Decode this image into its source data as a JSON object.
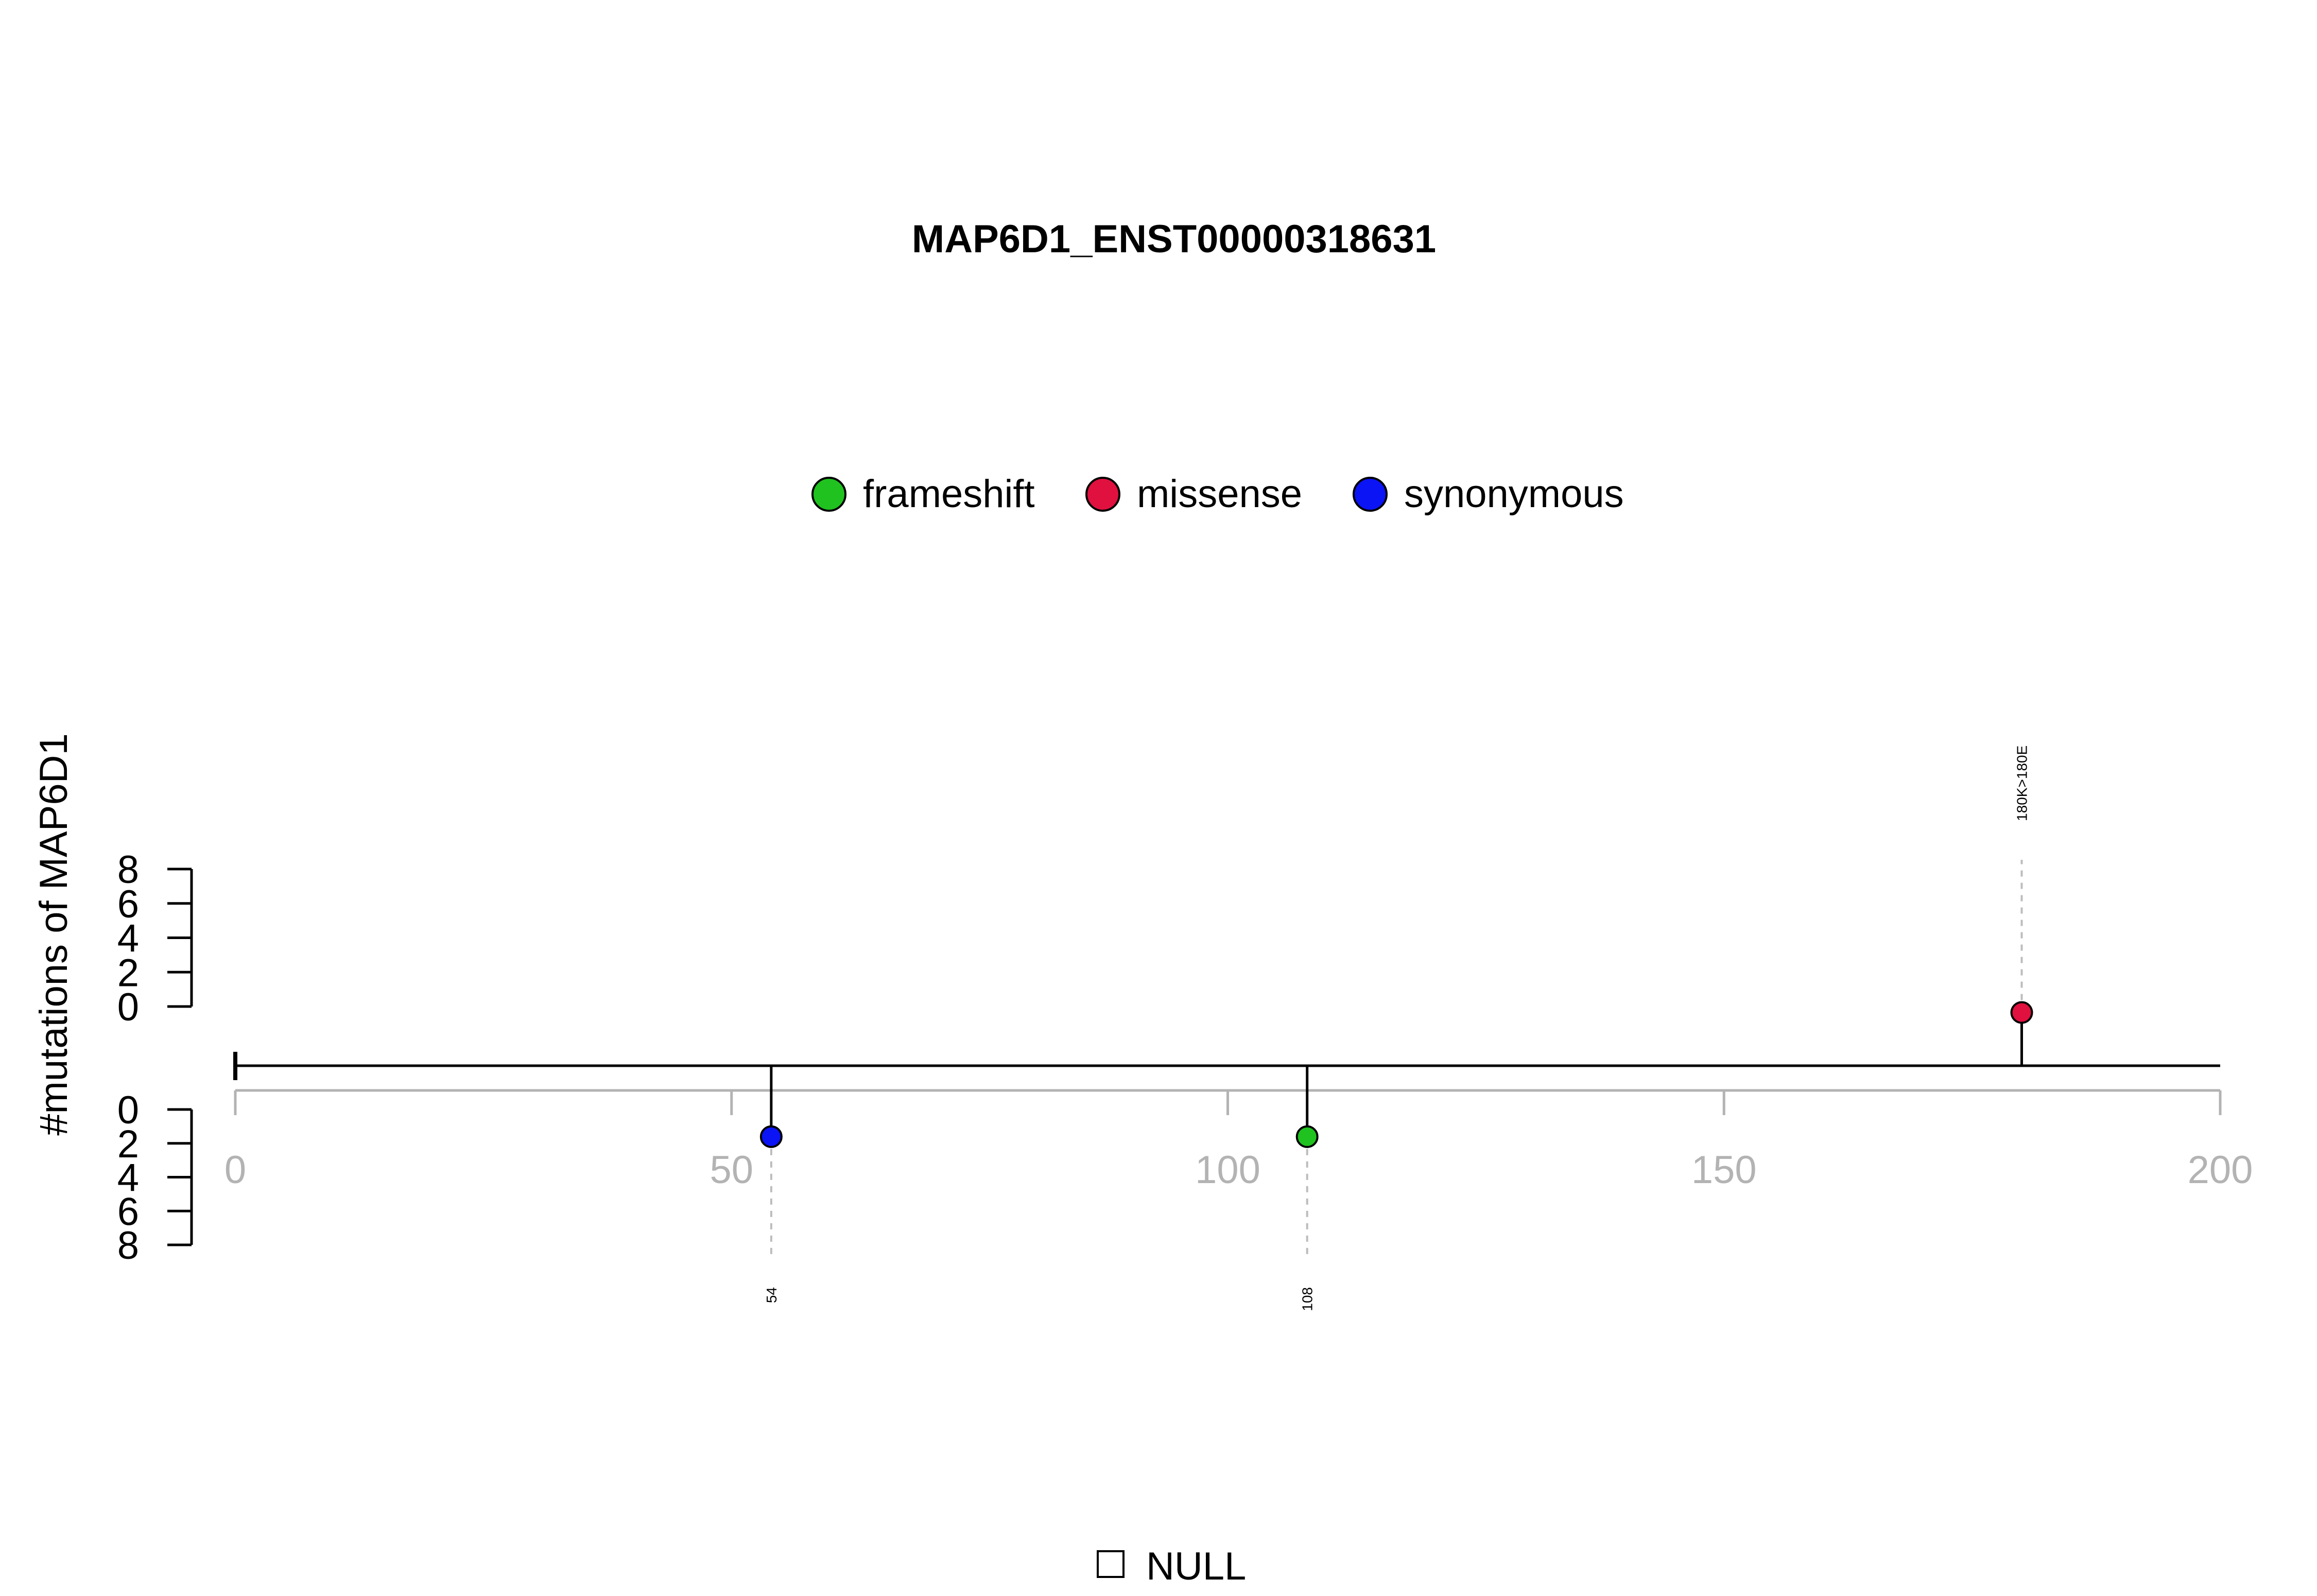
{
  "chart_data": {
    "type": "lollipop",
    "title": "MAP6D1_ENST00000318631",
    "ylabel": "#mutations of MAP6D1",
    "xlim": [
      0,
      200
    ],
    "x_ticks": [
      "0",
      "50",
      "100",
      "150",
      "200"
    ],
    "y_ticks_top": [
      "0",
      "2",
      "4",
      "6",
      "8"
    ],
    "y_ticks_bottom": [
      "0",
      "2",
      "4",
      "6",
      "8"
    ],
    "ylim": [
      0,
      8
    ],
    "legend": [
      {
        "label": "frameshift",
        "color": "#1fc21f"
      },
      {
        "label": "missense",
        "color": "#e0103f"
      },
      {
        "label": "synonymous",
        "color": "#0a14f5"
      }
    ],
    "domain_legend": [
      {
        "label": "NULL"
      }
    ],
    "mutations": [
      {
        "position": 54,
        "type": "synonymous",
        "count": 1,
        "side": "bottom",
        "label": "54"
      },
      {
        "position": 108,
        "type": "frameshift",
        "count": 1,
        "side": "bottom",
        "label": "108"
      },
      {
        "position": 180,
        "type": "missense",
        "count": 1,
        "side": "top",
        "label": "180K>180E"
      }
    ]
  }
}
